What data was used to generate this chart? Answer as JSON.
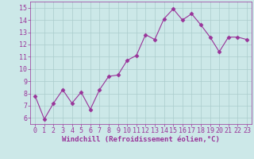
{
  "x": [
    0,
    1,
    2,
    3,
    4,
    5,
    6,
    7,
    8,
    9,
    10,
    11,
    12,
    13,
    14,
    15,
    16,
    17,
    18,
    19,
    20,
    21,
    22,
    23
  ],
  "y": [
    7.8,
    5.9,
    7.2,
    8.3,
    7.2,
    8.1,
    6.7,
    8.3,
    9.4,
    9.5,
    10.7,
    11.1,
    12.8,
    12.4,
    14.1,
    14.9,
    14.0,
    14.5,
    13.6,
    12.6,
    11.4,
    12.6,
    12.6,
    12.4
  ],
  "line_color": "#993399",
  "marker": "D",
  "marker_size": 2.5,
  "bg_color": "#cce8e8",
  "grid_color": "#aacccc",
  "xlabel": "Windchill (Refroidissement éolien,°C)",
  "xlabel_color": "#993399",
  "xlabel_fontsize": 6.5,
  "tick_color": "#993399",
  "tick_fontsize": 6.0,
  "ylim": [
    5.5,
    15.5
  ],
  "xlim": [
    -0.5,
    23.5
  ],
  "yticks": [
    6,
    7,
    8,
    9,
    10,
    11,
    12,
    13,
    14,
    15
  ],
  "xticks": [
    0,
    1,
    2,
    3,
    4,
    5,
    6,
    7,
    8,
    9,
    10,
    11,
    12,
    13,
    14,
    15,
    16,
    17,
    18,
    19,
    20,
    21,
    22,
    23
  ]
}
